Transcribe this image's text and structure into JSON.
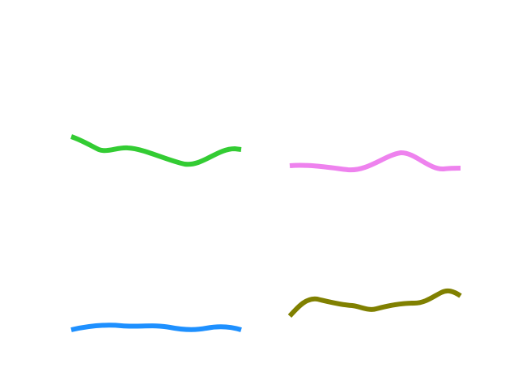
{
  "background": "#ffffff",
  "strokes": [
    {
      "id": "green-squiggle",
      "color": "#33cc33"
    },
    {
      "id": "violet-squiggle",
      "color": "#ee82ee"
    },
    {
      "id": "blue-squiggle",
      "color": "#1e90ff"
    },
    {
      "id": "olive-squiggle",
      "color": "#808000"
    }
  ]
}
